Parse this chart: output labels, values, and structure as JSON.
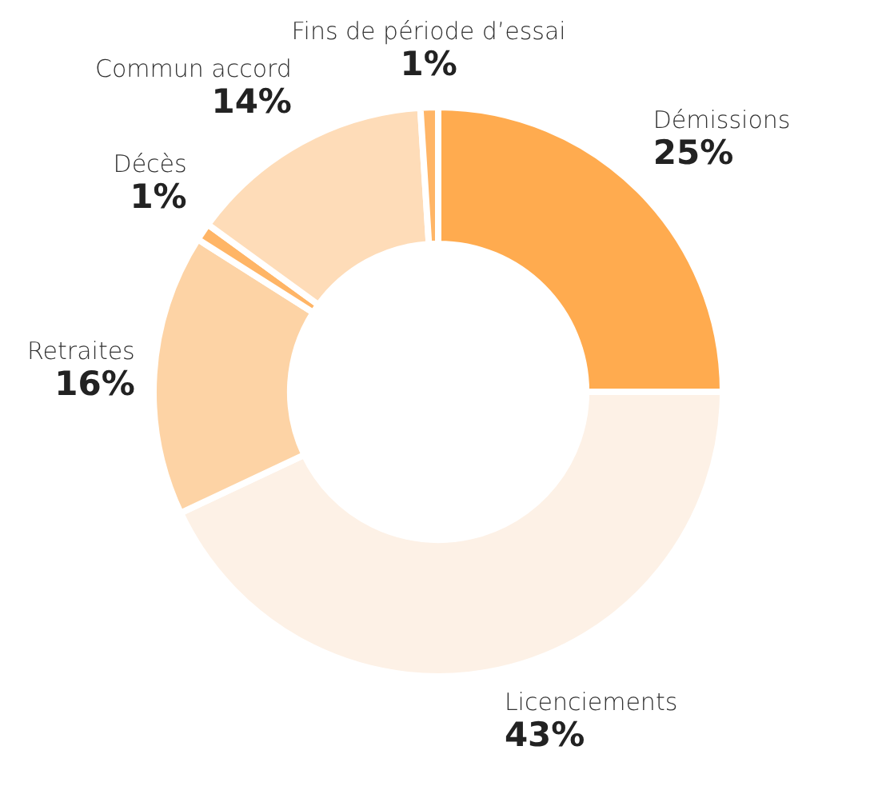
{
  "chart_data": {
    "type": "donut",
    "categories": [
      "Démissions",
      "Licenciements",
      "Retraites",
      "Décès",
      "Commun accord",
      "Fins de période d’essai"
    ],
    "values": [
      25,
      43,
      16,
      1,
      14,
      1
    ],
    "colors": [
      "#ffab4f",
      "#fdf1e6",
      "#fdd3a5",
      "#ffb566",
      "#fedcb8",
      "#ffb566"
    ],
    "value_labels": [
      "25%",
      "43%",
      "16%",
      "1%",
      "14%",
      "1%"
    ],
    "legend": false
  }
}
